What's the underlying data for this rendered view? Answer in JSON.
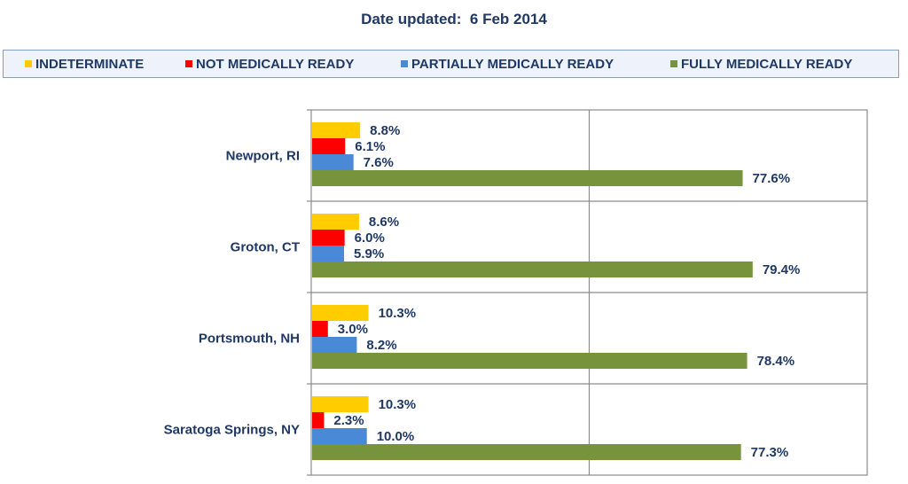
{
  "header": {
    "title": "Date updated:  6 Feb 2014"
  },
  "colors": {
    "text": "#1f3864",
    "gridline": "#8c8c8c",
    "legend_border": "#7f9fc6",
    "legend_background": "#eef3fb"
  },
  "chart_data": {
    "type": "bar",
    "orientation": "horizontal",
    "categories": [
      "Newport, RI",
      "Groton, CT",
      "Portsmouth, NH",
      "Saratoga Springs, NY"
    ],
    "series": [
      {
        "name": "INDETERMINATE",
        "color": "#ffcc00",
        "values": [
          8.8,
          8.6,
          10.3,
          10.3
        ],
        "labels": [
          "8.8%",
          "8.6%",
          "10.3%",
          "10.3%"
        ]
      },
      {
        "name": "NOT MEDICALLY READY",
        "color": "#ff0000",
        "values": [
          6.1,
          6.0,
          3.0,
          2.3
        ],
        "labels": [
          "6.1%",
          "6.0%",
          "3.0%",
          "2.3%"
        ]
      },
      {
        "name": "PARTIALLY MEDICALLY READY",
        "color": "#4a89d6",
        "values": [
          7.6,
          5.9,
          8.2,
          10.0
        ],
        "labels": [
          "7.6%",
          "5.9%",
          "8.2%",
          "10.0%"
        ]
      },
      {
        "name": "FULLY MEDICALLY READY",
        "color": "#77933c",
        "values": [
          77.6,
          79.4,
          78.4,
          77.3
        ],
        "labels": [
          "77.6%",
          "79.4%",
          "78.4%",
          "77.3%"
        ]
      }
    ],
    "xlim": [
      0,
      100
    ],
    "grid": true,
    "legend_position": "top",
    "data_labels": true
  }
}
